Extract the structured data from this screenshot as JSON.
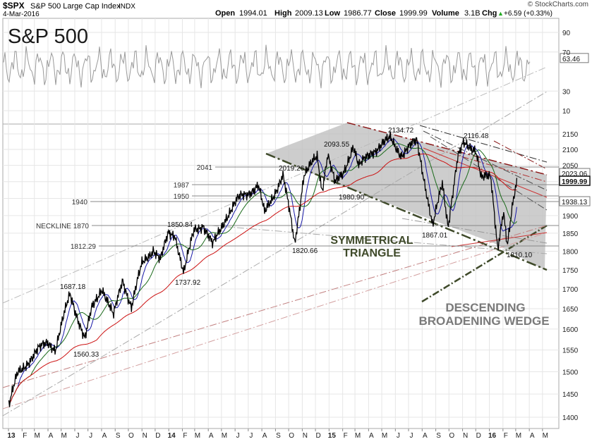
{
  "header": {
    "symbol": "$SPX",
    "name": "S&P 500 Large Cap Index",
    "exchange": "INDX",
    "date": "4-Mar-2016",
    "open_label": "Open",
    "open": "1994.01",
    "high_label": "High",
    "high": "2009.13",
    "low_label": "Low",
    "low": "1986.77",
    "close_label": "Close",
    "close": "1999.99",
    "volume_label": "Volume",
    "volume": "3.1B",
    "chg_label": "Chg",
    "chg": "+6.59 (+0.33%)",
    "chg_arrow": "▲",
    "copyright": "© StockCharts.com"
  },
  "panel_title": "S&P 500",
  "rsi_panel": {
    "ticks": [
      "90",
      "70",
      "30",
      "10"
    ],
    "current_value": "63.46"
  },
  "price_axis": {
    "ticks": [
      "2150",
      "2100",
      "2050",
      "2000",
      "1950",
      "1900",
      "1850",
      "1800",
      "1750",
      "1700",
      "1650",
      "1600",
      "1550",
      "1500",
      "1450",
      "1400"
    ],
    "value_tags": [
      {
        "text": "2023.06",
        "emphasis": false
      },
      {
        "text": "1999.99",
        "emphasis": true
      },
      {
        "text": "1938.13",
        "emphasis": false
      }
    ]
  },
  "horizontal_levels": [
    {
      "label": "2041"
    },
    {
      "label": "1987"
    },
    {
      "label": "1950"
    },
    {
      "label": "1940"
    },
    {
      "label": "NECKLINE  1870"
    },
    {
      "label": "1812.29"
    }
  ],
  "price_labels": [
    "2134.72",
    "2116.48",
    "2093.55",
    "2019.26",
    "1980.90",
    "1867.01",
    "1850.84",
    "1820.66",
    "1810.10",
    "1737.92",
    "1687.18",
    "1560.33"
  ],
  "annotations": {
    "triangle_line1": "SYMMETRICAL",
    "triangle_line2": "TRIANGLE",
    "wedge_line1": "DESCENDING",
    "wedge_line2": "BROADENING WEDGE"
  },
  "x_axis": {
    "labels": [
      "13",
      "F",
      "M",
      "A",
      "M",
      "J",
      "J",
      "A",
      "S",
      "O",
      "N",
      "D",
      "14",
      "F",
      "M",
      "A",
      "M",
      "J",
      "J",
      "A",
      "S",
      "O",
      "N",
      "D",
      "15",
      "F",
      "M",
      "A",
      "M",
      "J",
      "J",
      "A",
      "S",
      "O",
      "N",
      "D",
      "16",
      "F",
      "M",
      "A",
      "M"
    ],
    "bold_labels": [
      "13",
      "14",
      "15",
      "16"
    ]
  },
  "colors": {
    "price": "#000000",
    "ma_blue": "#1a1aa8",
    "ma_green": "#1a6a1a",
    "ma_red": "#cc1111",
    "triangle_fill": "#c0c0c0",
    "triangle_border": "#3f4a2a",
    "annotation_text": "#3f4a2a",
    "wedge_text": "#7a7a7a",
    "rsi_line": "#999999",
    "grid": "#e6e6e6"
  },
  "chart_data": {
    "type": "line",
    "title": "S&P 500",
    "x_range": [
      "2013-01",
      "2016-05"
    ],
    "ylim": [
      1380,
      2170
    ],
    "log_scale": true,
    "grid": true,
    "series": [
      {
        "name": "S&P 500",
        "x": [
          "2013-01-02",
          "2013-01-22",
          "2013-02-12",
          "2013-03-12",
          "2013-04-01",
          "2013-04-18",
          "2013-05-21",
          "2013-06-24",
          "2013-07-10",
          "2013-08-02",
          "2013-08-28",
          "2013-09-18",
          "2013-10-08",
          "2013-11-01",
          "2013-11-27",
          "2013-12-13",
          "2013-12-31",
          "2014-01-15",
          "2014-02-04",
          "2014-02-28",
          "2014-03-20",
          "2014-04-11",
          "2014-05-12",
          "2014-06-10",
          "2014-07-24",
          "2014-08-07",
          "2014-09-18",
          "2014-10-15",
          "2014-11-05",
          "2014-12-05",
          "2014-12-16",
          "2014-12-29",
          "2015-01-15",
          "2015-02-02",
          "2015-02-25",
          "2015-03-10",
          "2015-04-08",
          "2015-05-21",
          "2015-06-15",
          "2015-07-20",
          "2015-08-25",
          "2015-09-16",
          "2015-09-29",
          "2015-10-21",
          "2015-11-03",
          "2015-12-01",
          "2015-12-14",
          "2016-01-04",
          "2016-01-20",
          "2016-02-02",
          "2016-02-11",
          "2016-02-24",
          "2016-03-04"
        ],
        "values": [
          1426,
          1495,
          1520,
          1552,
          1570,
          1552,
          1687,
          1575,
          1650,
          1705,
          1630,
          1725,
          1655,
          1765,
          1807,
          1775,
          1848,
          1848,
          1740,
          1860,
          1875,
          1815,
          1897,
          1950,
          1988,
          1905,
          2019,
          1821,
          2023,
          2075,
          1972,
          2090,
          1993,
          2022,
          2115,
          2045,
          2093,
          2134,
          2084,
          2128,
          1867,
          1995,
          1872,
          2072,
          2116,
          2103,
          2010,
          2012,
          1812,
          1915,
          1810,
          1935,
          2000
        ]
      }
    ]
  }
}
